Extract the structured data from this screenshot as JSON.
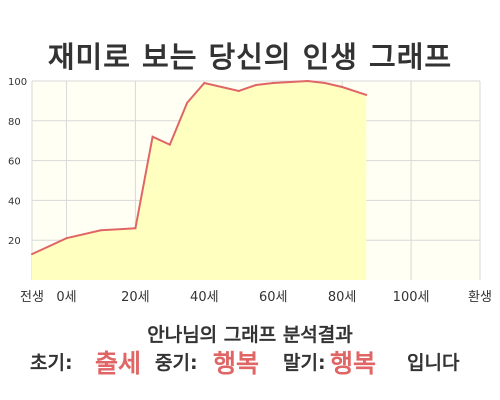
{
  "chart_data": {
    "type": "area",
    "title": "재미로 보는 당신의 인생 그래프",
    "x": [
      -10,
      0,
      10,
      20,
      25,
      30,
      35,
      40,
      50,
      55,
      60,
      70,
      75,
      80,
      87
    ],
    "values": [
      13,
      21,
      25,
      26,
      72,
      68,
      89,
      99,
      95,
      98,
      99,
      100,
      99,
      97,
      93
    ],
    "xticks": [
      {
        "v": -10,
        "label": "전생"
      },
      {
        "v": 0,
        "label": "0세"
      },
      {
        "v": 20,
        "label": "20세"
      },
      {
        "v": 40,
        "label": "40세"
      },
      {
        "v": 60,
        "label": "60세"
      },
      {
        "v": 80,
        "label": "80세"
      },
      {
        "v": 100,
        "label": "100세"
      },
      {
        "v": 120,
        "label": "환생"
      }
    ],
    "yticks": [
      20,
      40,
      60,
      80,
      100
    ],
    "ylim": [
      0,
      100
    ],
    "grid": true,
    "colors": {
      "line": "#e06666",
      "fill": "#ffffc0",
      "bg": "#fffff4",
      "accent": "#e06666"
    }
  },
  "caption": {
    "line1": "안나님의 그래프 분석결과",
    "early_label": "초기:",
    "early_value": "출세",
    "mid_label": "중기:",
    "mid_value": "행복",
    "late_label": "말기:",
    "late_value": "행복",
    "ending": "입니다"
  }
}
